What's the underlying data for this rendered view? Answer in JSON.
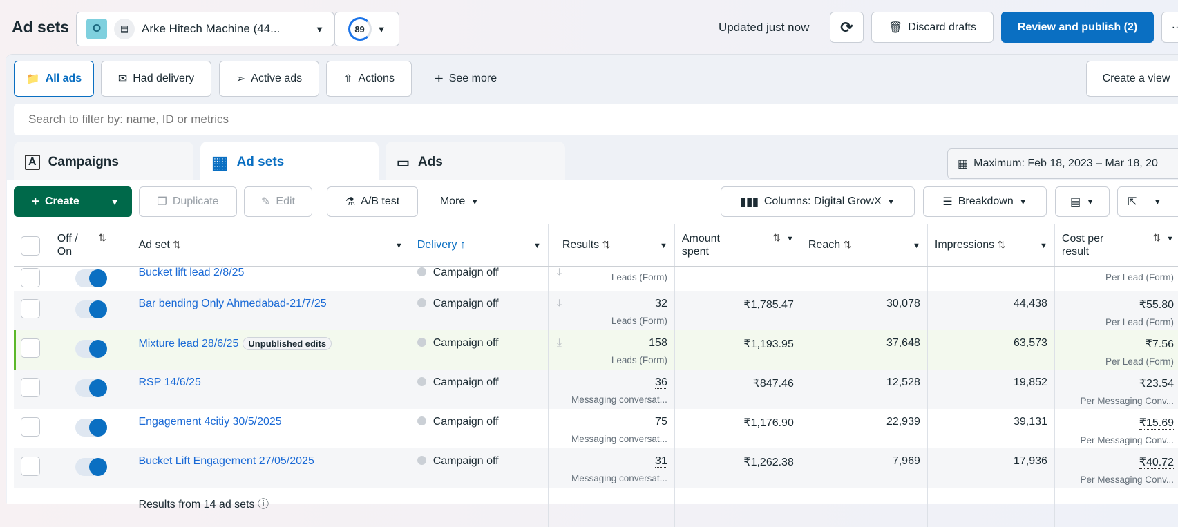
{
  "header": {
    "title": "Ad sets",
    "account_initial": "O",
    "account_name": "Arke Hitech Machine (44...",
    "score": "89",
    "updated": "Updated just now",
    "discard": "Discard drafts",
    "review": "Review and publish (2)",
    "more": "··"
  },
  "filters": {
    "items": [
      "All ads",
      "Had delivery",
      "Active ads",
      "Actions"
    ],
    "see_more": "See more",
    "create_view": "Create a view"
  },
  "search": {
    "placeholder": "Search to filter by: name, ID or metrics"
  },
  "tabs": [
    "Campaigns",
    "Ad sets",
    "Ads"
  ],
  "date_range": "Maximum: Feb 18, 2023 – Mar 18, 20",
  "toolbar": {
    "create": "Create",
    "duplicate": "Duplicate",
    "edit": "Edit",
    "ab_test": "A/B test",
    "more": "More",
    "columns": "Columns: Digital GrowX",
    "breakdown": "Breakdown"
  },
  "table": {
    "headers": {
      "onoff": "Off / On",
      "adset": "Ad set",
      "delivery": "Delivery",
      "results": "Results",
      "amount": "Amount spent",
      "reach": "Reach",
      "impressions": "Impressions",
      "cost": "Cost per result"
    },
    "rows": [
      {
        "name": "Bucket lift lead 2/8/25",
        "delivery": "Campaign off",
        "results": "",
        "result_type": "Leads (Form)",
        "amount": "",
        "reach": "",
        "impressions": "",
        "cost": "",
        "cost_type": "Per Lead (Form)",
        "partial": true
      },
      {
        "name": "Bar bending Only Ahmedabad-21/7/25",
        "delivery": "Campaign off",
        "results": "32",
        "result_type": "Leads (Form)",
        "amount": "₹1,785.47",
        "reach": "30,078",
        "impressions": "44,438",
        "cost": "₹55.80",
        "cost_type": "Per Lead (Form)"
      },
      {
        "name": "Mixture lead 28/6/25",
        "badge": "Unpublished edits",
        "delivery": "Campaign off",
        "results": "158",
        "result_type": "Leads (Form)",
        "amount": "₹1,193.95",
        "reach": "37,648",
        "impressions": "63,573",
        "cost": "₹7.56",
        "cost_type": "Per Lead (Form)"
      },
      {
        "name": "RSP 14/6/25",
        "delivery": "Campaign off",
        "results": "36",
        "result_type": "Messaging conversat...",
        "amount": "₹847.46",
        "reach": "12,528",
        "impressions": "19,852",
        "cost": "₹23.54",
        "cost_type": "Per Messaging Conv..."
      },
      {
        "name": "Engagement 4citiy 30/5/2025",
        "delivery": "Campaign off",
        "results": "75",
        "result_type": "Messaging conversat...",
        "amount": "₹1,176.90",
        "reach": "22,939",
        "impressions": "39,131",
        "cost": "₹15.69",
        "cost_type": "Per Messaging Conv..."
      },
      {
        "name": "Bucket Lift Engagement 27/05/2025",
        "delivery": "Campaign off",
        "results": "31",
        "result_type": "Messaging conversat...",
        "amount": "₹1,262.38",
        "reach": "7,969",
        "impressions": "17,936",
        "cost": "₹40.72",
        "cost_type": "Per Messaging Conv..."
      }
    ],
    "footer": "Results from 14 ad sets"
  },
  "colors": {
    "primary": "#0a6fc2",
    "create_green": "#00694a",
    "link": "#1a6ad6",
    "highlight_row": "#f3f9ee"
  }
}
